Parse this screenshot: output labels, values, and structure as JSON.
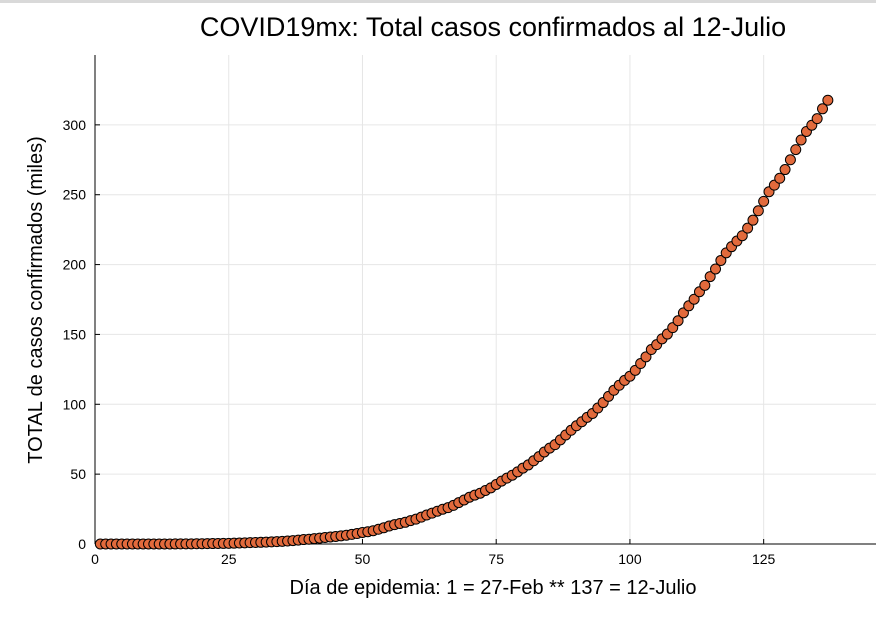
{
  "chart_data": {
    "type": "scatter",
    "title": "COVID19mx: Total casos confirmados al 12-Julio",
    "xlabel": "Día de epidemia: 1 = 27-Feb ** 137 = 12-Julio",
    "ylabel": "TOTAL de casos confirmados (miles)",
    "xlim": [
      0,
      146
    ],
    "ylim": [
      0,
      350
    ],
    "xticks": [
      "0",
      "25",
      "50",
      "75",
      "100",
      "125"
    ],
    "yticks": [
      "0",
      "50",
      "100",
      "150",
      "200",
      "250",
      "300"
    ],
    "grid": true,
    "legend": "none",
    "marker_color": "#e26a3c",
    "marker_edge": "#000000",
    "x": [
      1,
      2,
      3,
      4,
      5,
      6,
      7,
      8,
      9,
      10,
      11,
      12,
      13,
      14,
      15,
      16,
      17,
      18,
      19,
      20,
      21,
      22,
      23,
      24,
      25,
      26,
      27,
      28,
      29,
      30,
      31,
      32,
      33,
      34,
      35,
      36,
      37,
      38,
      39,
      40,
      41,
      42,
      43,
      44,
      45,
      46,
      47,
      48,
      49,
      50,
      51,
      52,
      53,
      54,
      55,
      56,
      57,
      58,
      59,
      60,
      61,
      62,
      63,
      64,
      65,
      66,
      67,
      68,
      69,
      70,
      71,
      72,
      73,
      74,
      75,
      76,
      77,
      78,
      79,
      80,
      81,
      82,
      83,
      84,
      85,
      86,
      87,
      88,
      89,
      90,
      91,
      92,
      93,
      94,
      95,
      96,
      97,
      98,
      99,
      100,
      101,
      102,
      103,
      104,
      105,
      106,
      107,
      108,
      109,
      110,
      111,
      112,
      113,
      114,
      115,
      116,
      117,
      118,
      119,
      120,
      121,
      122,
      123,
      124,
      125,
      126,
      127,
      128,
      129,
      130,
      131,
      132,
      133,
      134,
      135,
      136,
      137
    ],
    "series": [
      {
        "values": [
          0.001,
          0.001,
          0.002,
          0.004,
          0.005,
          0.005,
          0.006,
          0.007,
          0.007,
          0.008,
          0.012,
          0.015,
          0.026,
          0.041,
          0.053,
          0.082,
          0.093,
          0.118,
          0.164,
          0.203,
          0.251,
          0.316,
          0.367,
          0.405,
          0.475,
          0.585,
          0.717,
          0.848,
          0.993,
          1.094,
          1.215,
          1.378,
          1.51,
          1.688,
          1.89,
          2.143,
          2.439,
          2.785,
          3.181,
          3.441,
          3.844,
          4.219,
          4.661,
          5.014,
          5.399,
          5.847,
          6.297,
          6.875,
          7.497,
          8.261,
          8.772,
          9.501,
          10.544,
          11.633,
          12.872,
          13.842,
          14.677,
          15.529,
          16.752,
          17.799,
          19.224,
          20.739,
          22.088,
          23.471,
          24.905,
          26.025,
          27.634,
          29.616,
          31.522,
          33.46,
          35.022,
          36.327,
          38.324,
          40.186,
          42.595,
          45.032,
          47.144,
          49.219,
          51.633,
          54.346,
          56.594,
          59.567,
          62.527,
          65.856,
          68.62,
          71.105,
          74.56,
          78.023,
          81.4,
          84.627,
          87.512,
          90.664,
          93.435,
          97.326,
          101.238,
          105.68,
          110.026,
          113.619,
          117.103,
          120.102,
          124.301,
          129.184,
          133.974,
          139.196,
          142.69,
          146.837,
          150.264,
          154.863,
          159.793,
          165.455,
          170.485,
          175.202,
          180.545,
          185.122,
          191.41,
          196.847,
          202.951,
          208.392,
          212.802,
          216.852,
          220.657,
          226.089,
          231.77,
          238.511,
          245.251,
          252.165,
          256.848,
          261.75,
          268.008,
          275.003,
          282.283,
          289.174,
          295.268,
          299.75,
          304.435,
          311.486,
          317.635
        ]
      }
    ]
  }
}
